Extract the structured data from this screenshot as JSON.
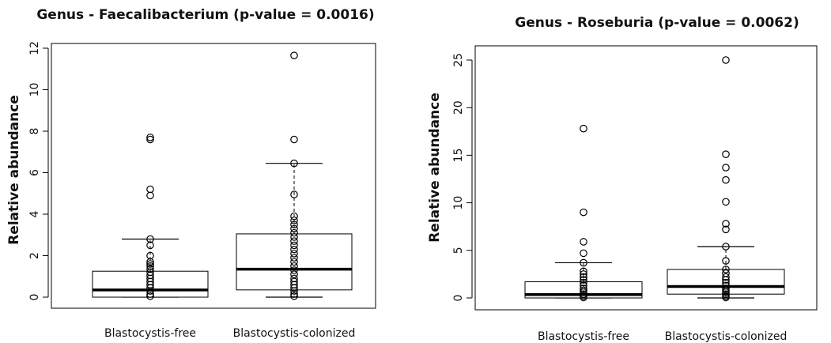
{
  "chart_data": [
    {
      "type": "box",
      "title": "Genus - Faecalibacterium (p-value = 0.0016)",
      "xlabel": "",
      "ylabel": "Relative abundance",
      "ylim": [
        0,
        12
      ],
      "yticks": [
        0,
        2,
        4,
        6,
        8,
        10,
        12
      ],
      "categories": [
        "Blastocystis-free",
        "Blastocystis-colonized"
      ],
      "boxes": [
        {
          "category": "Blastocystis-free",
          "q1": 0.0,
          "median": 0.35,
          "q3": 1.25,
          "whisker_low": 0.0,
          "whisker_high": 2.8,
          "outliers": [
            0.05,
            0.15,
            0.3,
            0.45,
            0.6,
            0.75,
            0.9,
            1.05,
            1.2,
            1.35,
            1.5,
            1.6,
            1.7,
            2.0,
            2.5,
            2.8,
            4.9,
            5.2,
            7.6,
            7.7
          ]
        },
        {
          "category": "Blastocystis-colonized",
          "q1": 0.35,
          "median": 1.35,
          "q3": 3.05,
          "whisker_low": 0.0,
          "whisker_high": 6.45,
          "outliers": [
            0.05,
            0.15,
            0.3,
            0.45,
            0.6,
            0.75,
            0.9,
            1.1,
            1.3,
            1.5,
            1.7,
            1.9,
            2.1,
            2.3,
            2.5,
            2.7,
            2.9,
            3.1,
            3.3,
            3.5,
            3.7,
            3.9,
            4.95,
            6.45,
            7.6,
            11.65
          ]
        }
      ]
    },
    {
      "type": "box",
      "title": "Genus - Roseburia (p-value = 0.0062)",
      "xlabel": "",
      "ylabel": "Relative abundance",
      "ylim": [
        0,
        25
      ],
      "yticks": [
        0,
        5,
        10,
        15,
        20,
        25
      ],
      "categories": [
        "Blastocystis-free",
        "Blastocystis-colonized"
      ],
      "boxes": [
        {
          "category": "Blastocystis-free",
          "q1": 0.0,
          "median": 0.35,
          "q3": 1.7,
          "whisker_low": 0.0,
          "whisker_high": 3.7,
          "outliers": [
            0.05,
            0.2,
            0.4,
            0.6,
            0.8,
            1.0,
            1.3,
            1.6,
            1.9,
            2.2,
            2.5,
            2.8,
            3.7,
            4.7,
            5.9,
            9.0,
            17.8
          ]
        },
        {
          "category": "Blastocystis-colonized",
          "q1": 0.4,
          "median": 1.2,
          "q3": 3.0,
          "whisker_low": 0.0,
          "whisker_high": 5.4,
          "outliers": [
            0.05,
            0.2,
            0.4,
            0.6,
            0.8,
            1.0,
            1.3,
            1.6,
            1.9,
            2.2,
            2.6,
            3.0,
            3.9,
            5.4,
            7.2,
            7.8,
            10.1,
            12.4,
            13.7,
            15.1,
            25.0
          ]
        }
      ]
    }
  ]
}
